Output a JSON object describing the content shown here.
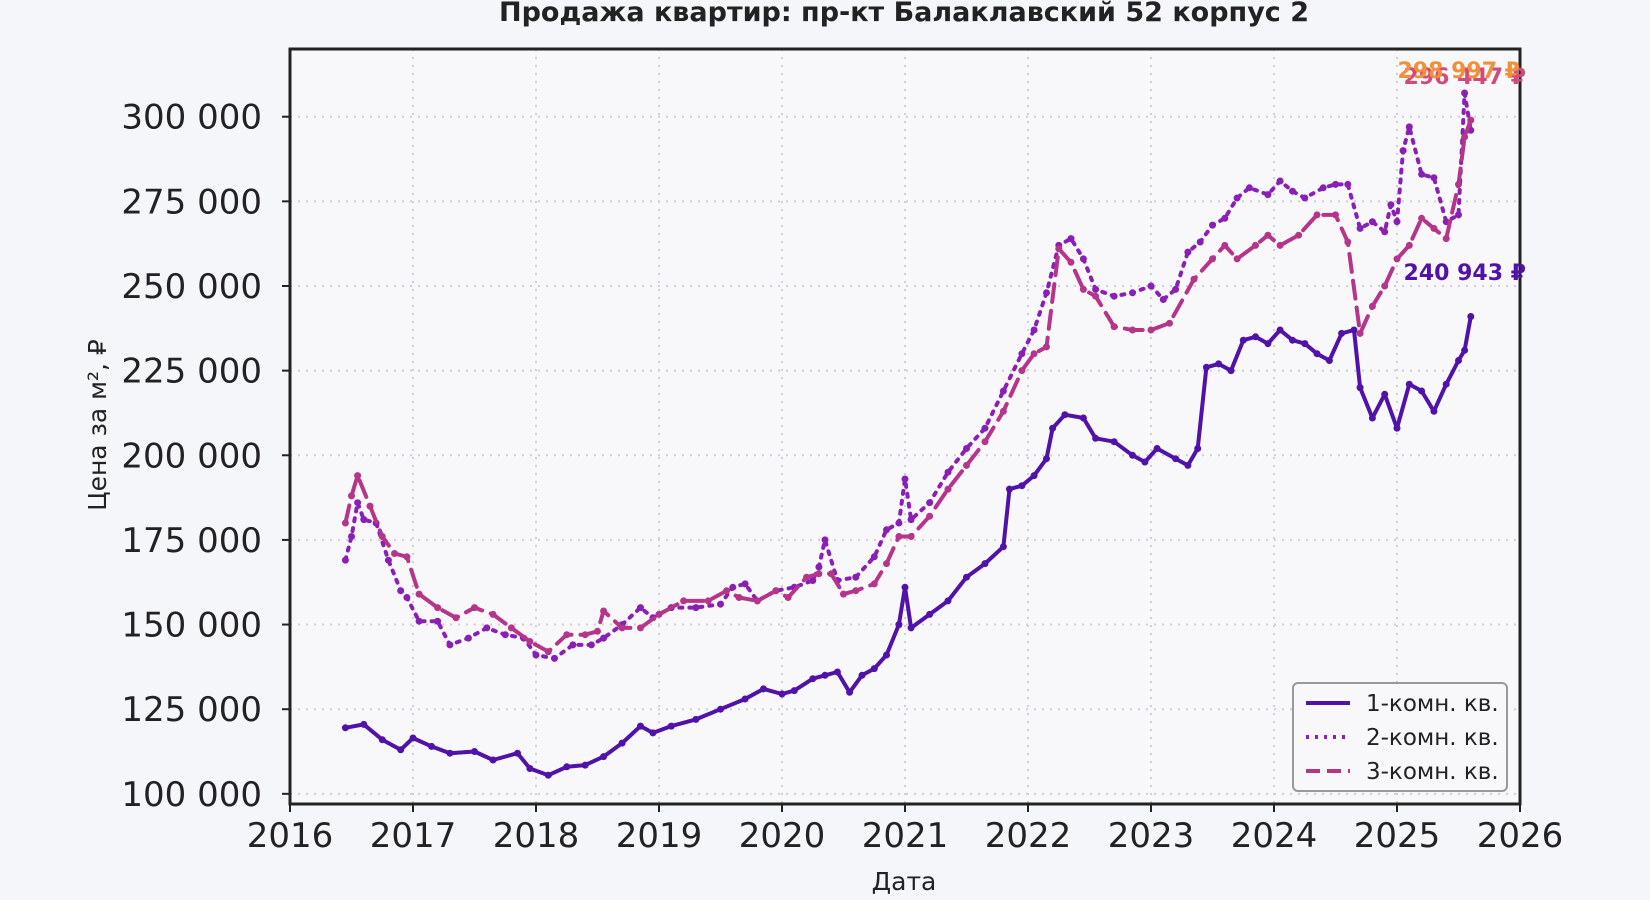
{
  "chart_data": {
    "type": "line",
    "title": "Продажа квартир: пр-кт Балаклавский 52 корпус 2",
    "xlabel": "Дата",
    "ylabel": "Цена за м², ₽",
    "xlim": [
      2016.0,
      2026.0
    ],
    "ylim": [
      97000,
      320000
    ],
    "x_ticks": [
      "2016",
      "2017",
      "2018",
      "2019",
      "2020",
      "2021",
      "2022",
      "2023",
      "2024",
      "2025",
      "2026"
    ],
    "y_ticks": [
      "100 000",
      "125 000",
      "150 000",
      "175 000",
      "200 000",
      "225 000",
      "250 000",
      "275 000",
      "300 000"
    ],
    "y_tick_values": [
      100000,
      125000,
      150000,
      175000,
      200000,
      225000,
      250000,
      275000,
      300000
    ],
    "grid": true,
    "legend_position": "bottom-right",
    "series": [
      {
        "name": "1-комн. кв.",
        "color": "#5012a8",
        "style": "solid",
        "end_label": "240 943 ₽",
        "points": [
          [
            2016.45,
            119500
          ],
          [
            2016.6,
            120500
          ],
          [
            2016.75,
            116000
          ],
          [
            2016.9,
            113000
          ],
          [
            2017.0,
            116500
          ],
          [
            2017.15,
            114000
          ],
          [
            2017.3,
            112000
          ],
          [
            2017.5,
            112500
          ],
          [
            2017.65,
            110000
          ],
          [
            2017.85,
            112000
          ],
          [
            2017.95,
            107500
          ],
          [
            2018.1,
            105500
          ],
          [
            2018.25,
            108000
          ],
          [
            2018.4,
            108500
          ],
          [
            2018.55,
            111000
          ],
          [
            2018.7,
            115000
          ],
          [
            2018.85,
            120000
          ],
          [
            2018.95,
            118000
          ],
          [
            2019.1,
            120000
          ],
          [
            2019.3,
            122000
          ],
          [
            2019.5,
            125000
          ],
          [
            2019.7,
            128000
          ],
          [
            2019.85,
            131000
          ],
          [
            2020.0,
            129500
          ],
          [
            2020.1,
            130500
          ],
          [
            2020.25,
            134000
          ],
          [
            2020.35,
            135000
          ],
          [
            2020.45,
            136000
          ],
          [
            2020.55,
            130000
          ],
          [
            2020.65,
            135000
          ],
          [
            2020.75,
            137000
          ],
          [
            2020.85,
            141000
          ],
          [
            2020.95,
            150000
          ],
          [
            2021.0,
            161000
          ],
          [
            2021.05,
            149000
          ],
          [
            2021.2,
            153000
          ],
          [
            2021.35,
            157000
          ],
          [
            2021.5,
            164000
          ],
          [
            2021.65,
            168000
          ],
          [
            2021.8,
            173000
          ],
          [
            2021.85,
            190000
          ],
          [
            2021.95,
            191000
          ],
          [
            2022.05,
            194000
          ],
          [
            2022.15,
            199000
          ],
          [
            2022.2,
            208000
          ],
          [
            2022.3,
            212000
          ],
          [
            2022.45,
            211000
          ],
          [
            2022.55,
            205000
          ],
          [
            2022.7,
            204000
          ],
          [
            2022.85,
            200000
          ],
          [
            2022.95,
            198000
          ],
          [
            2023.05,
            202000
          ],
          [
            2023.2,
            199000
          ],
          [
            2023.3,
            197000
          ],
          [
            2023.38,
            202000
          ],
          [
            2023.45,
            226000
          ],
          [
            2023.55,
            227000
          ],
          [
            2023.65,
            225000
          ],
          [
            2023.75,
            234000
          ],
          [
            2023.85,
            235000
          ],
          [
            2023.95,
            233000
          ],
          [
            2024.05,
            237000
          ],
          [
            2024.15,
            234000
          ],
          [
            2024.25,
            233000
          ],
          [
            2024.35,
            230000
          ],
          [
            2024.45,
            228000
          ],
          [
            2024.55,
            236000
          ],
          [
            2024.65,
            237000
          ],
          [
            2024.7,
            220000
          ],
          [
            2024.8,
            211000
          ],
          [
            2024.9,
            218000
          ],
          [
            2025.0,
            208000
          ],
          [
            2025.1,
            221000
          ],
          [
            2025.2,
            219000
          ],
          [
            2025.3,
            213000
          ],
          [
            2025.4,
            221000
          ],
          [
            2025.5,
            228000
          ],
          [
            2025.55,
            231000
          ],
          [
            2025.6,
            241000
          ]
        ]
      },
      {
        "name": "2-комн. кв.",
        "color": "#8a1fb5",
        "style": "dotted",
        "end_label": "296 447 ₽",
        "points": [
          [
            2016.45,
            169000
          ],
          [
            2016.5,
            176000
          ],
          [
            2016.55,
            186000
          ],
          [
            2016.6,
            181000
          ],
          [
            2016.7,
            180000
          ],
          [
            2016.8,
            169000
          ],
          [
            2016.9,
            160000
          ],
          [
            2016.95,
            158000
          ],
          [
            2017.05,
            151000
          ],
          [
            2017.2,
            151000
          ],
          [
            2017.3,
            144000
          ],
          [
            2017.45,
            146000
          ],
          [
            2017.6,
            149000
          ],
          [
            2017.75,
            147000
          ],
          [
            2017.9,
            146000
          ],
          [
            2018.0,
            141000
          ],
          [
            2018.15,
            140000
          ],
          [
            2018.3,
            144000
          ],
          [
            2018.45,
            144000
          ],
          [
            2018.55,
            146000
          ],
          [
            2018.7,
            150000
          ],
          [
            2018.85,
            155000
          ],
          [
            2018.95,
            152000
          ],
          [
            2019.1,
            155000
          ],
          [
            2019.3,
            155000
          ],
          [
            2019.5,
            156000
          ],
          [
            2019.6,
            161000
          ],
          [
            2019.7,
            162000
          ],
          [
            2019.8,
            157000
          ],
          [
            2019.95,
            160000
          ],
          [
            2020.1,
            161000
          ],
          [
            2020.25,
            163000
          ],
          [
            2020.3,
            167000
          ],
          [
            2020.35,
            175000
          ],
          [
            2020.45,
            163000
          ],
          [
            2020.6,
            164000
          ],
          [
            2020.75,
            170000
          ],
          [
            2020.85,
            178000
          ],
          [
            2020.95,
            180000
          ],
          [
            2021.0,
            193000
          ],
          [
            2021.05,
            181000
          ],
          [
            2021.2,
            186000
          ],
          [
            2021.35,
            195000
          ],
          [
            2021.5,
            202000
          ],
          [
            2021.65,
            208000
          ],
          [
            2021.8,
            219000
          ],
          [
            2021.95,
            230000
          ],
          [
            2022.05,
            237000
          ],
          [
            2022.15,
            248000
          ],
          [
            2022.25,
            262000
          ],
          [
            2022.35,
            264000
          ],
          [
            2022.45,
            258000
          ],
          [
            2022.55,
            249000
          ],
          [
            2022.7,
            247000
          ],
          [
            2022.85,
            248000
          ],
          [
            2023.0,
            250000
          ],
          [
            2023.1,
            246000
          ],
          [
            2023.2,
            249000
          ],
          [
            2023.3,
            260000
          ],
          [
            2023.4,
            263000
          ],
          [
            2023.5,
            268000
          ],
          [
            2023.6,
            270000
          ],
          [
            2023.7,
            276000
          ],
          [
            2023.8,
            279000
          ],
          [
            2023.95,
            277000
          ],
          [
            2024.05,
            281000
          ],
          [
            2024.15,
            278000
          ],
          [
            2024.25,
            276000
          ],
          [
            2024.4,
            279000
          ],
          [
            2024.5,
            280000
          ],
          [
            2024.6,
            280000
          ],
          [
            2024.7,
            267000
          ],
          [
            2024.8,
            269000
          ],
          [
            2024.9,
            266000
          ],
          [
            2024.95,
            274000
          ],
          [
            2025.0,
            269000
          ],
          [
            2025.05,
            290000
          ],
          [
            2025.1,
            297000
          ],
          [
            2025.2,
            283000
          ],
          [
            2025.3,
            282000
          ],
          [
            2025.4,
            269000
          ],
          [
            2025.5,
            271000
          ],
          [
            2025.55,
            307000
          ],
          [
            2025.6,
            296000
          ]
        ]
      },
      {
        "name": "3-комн. кв.",
        "color": "#b5358a",
        "style": "dashed",
        "end_label": "298 997 ₽",
        "points": [
          [
            2016.45,
            180000
          ],
          [
            2016.5,
            188000
          ],
          [
            2016.55,
            194000
          ],
          [
            2016.65,
            185000
          ],
          [
            2016.75,
            176000
          ],
          [
            2016.85,
            171000
          ],
          [
            2016.95,
            170000
          ],
          [
            2017.05,
            159000
          ],
          [
            2017.2,
            155000
          ],
          [
            2017.35,
            152000
          ],
          [
            2017.5,
            155000
          ],
          [
            2017.65,
            153000
          ],
          [
            2017.8,
            149000
          ],
          [
            2017.95,
            145000
          ],
          [
            2018.1,
            142000
          ],
          [
            2018.25,
            147000
          ],
          [
            2018.4,
            147000
          ],
          [
            2018.5,
            148000
          ],
          [
            2018.55,
            154000
          ],
          [
            2018.7,
            149000
          ],
          [
            2018.85,
            149000
          ],
          [
            2019.0,
            153000
          ],
          [
            2019.2,
            157000
          ],
          [
            2019.4,
            157000
          ],
          [
            2019.55,
            160000
          ],
          [
            2019.65,
            158000
          ],
          [
            2019.8,
            157000
          ],
          [
            2019.95,
            160000
          ],
          [
            2020.05,
            158000
          ],
          [
            2020.2,
            164000
          ],
          [
            2020.3,
            165000
          ],
          [
            2020.4,
            165000
          ],
          [
            2020.5,
            159000
          ],
          [
            2020.6,
            160000
          ],
          [
            2020.75,
            162000
          ],
          [
            2020.85,
            168000
          ],
          [
            2020.95,
            176000
          ],
          [
            2021.05,
            176000
          ],
          [
            2021.2,
            182000
          ],
          [
            2021.35,
            190000
          ],
          [
            2021.5,
            197000
          ],
          [
            2021.65,
            204000
          ],
          [
            2021.8,
            213000
          ],
          [
            2021.95,
            225000
          ],
          [
            2022.05,
            230000
          ],
          [
            2022.15,
            232000
          ],
          [
            2022.25,
            261000
          ],
          [
            2022.35,
            257000
          ],
          [
            2022.45,
            249000
          ],
          [
            2022.55,
            247000
          ],
          [
            2022.7,
            238000
          ],
          [
            2022.85,
            237000
          ],
          [
            2023.0,
            237000
          ],
          [
            2023.15,
            239000
          ],
          [
            2023.35,
            252000
          ],
          [
            2023.5,
            258000
          ],
          [
            2023.6,
            262000
          ],
          [
            2023.7,
            258000
          ],
          [
            2023.85,
            262000
          ],
          [
            2023.95,
            265000
          ],
          [
            2024.05,
            262000
          ],
          [
            2024.2,
            265000
          ],
          [
            2024.35,
            271000
          ],
          [
            2024.5,
            271000
          ],
          [
            2024.6,
            263000
          ],
          [
            2024.7,
            236000
          ],
          [
            2024.8,
            244000
          ],
          [
            2024.9,
            250000
          ],
          [
            2025.0,
            258000
          ],
          [
            2025.1,
            262000
          ],
          [
            2025.2,
            270000
          ],
          [
            2025.3,
            267000
          ],
          [
            2025.4,
            264000
          ],
          [
            2025.5,
            280000
          ],
          [
            2025.55,
            294000
          ],
          [
            2025.6,
            299000
          ]
        ]
      }
    ]
  }
}
